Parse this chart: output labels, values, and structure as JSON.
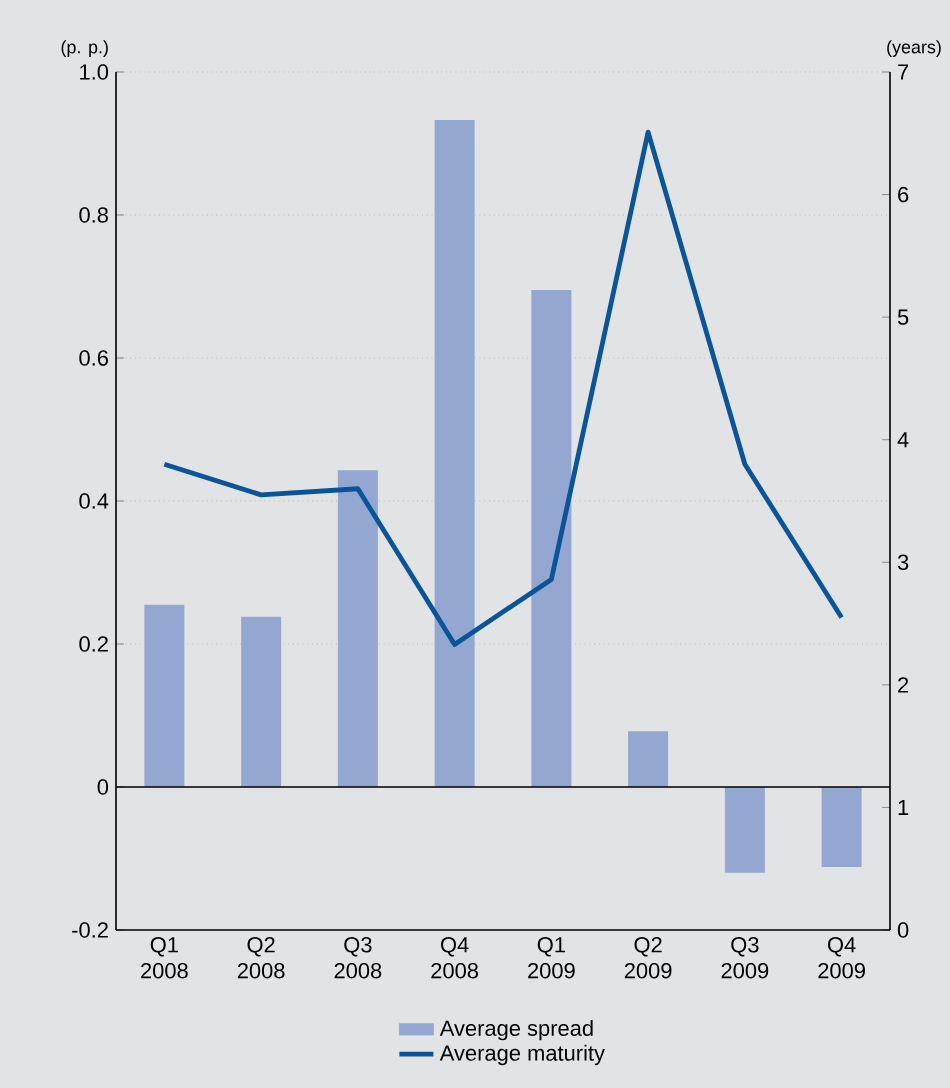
{
  "chart_data": {
    "type": "bar",
    "ylabel": "(p. p.)",
    "y2label": "(years)",
    "categories": [
      "Q1 2008",
      "Q2 2008",
      "Q3 2008",
      "Q4 2008",
      "Q1 2009",
      "Q2 2009",
      "Q3 2009",
      "Q4 2009"
    ],
    "series": [
      {
        "name": "Average spread",
        "color": "#94a7d1",
        "values": [
          0.255,
          0.238,
          0.443,
          0.933,
          0.695,
          0.078,
          -0.12,
          -0.112
        ]
      },
      {
        "name": "Average maturity",
        "type": "line",
        "axis": "y2",
        "color": "#0a5499",
        "values": [
          3.8,
          3.55,
          3.6,
          2.33,
          2.86,
          6.51,
          3.8,
          2.55
        ]
      }
    ],
    "ylim": [
      -0.2,
      1.0
    ],
    "yticks": [
      -0.2,
      0,
      0.2,
      0.4,
      0.6,
      0.8,
      {
        "value": 1.0,
        "label": "1.0"
      }
    ],
    "y2lim": [
      0,
      7
    ],
    "y2ticks": [
      0,
      1,
      2,
      3,
      4,
      5,
      6,
      7
    ],
    "grid": "y",
    "legend": "bottom"
  }
}
